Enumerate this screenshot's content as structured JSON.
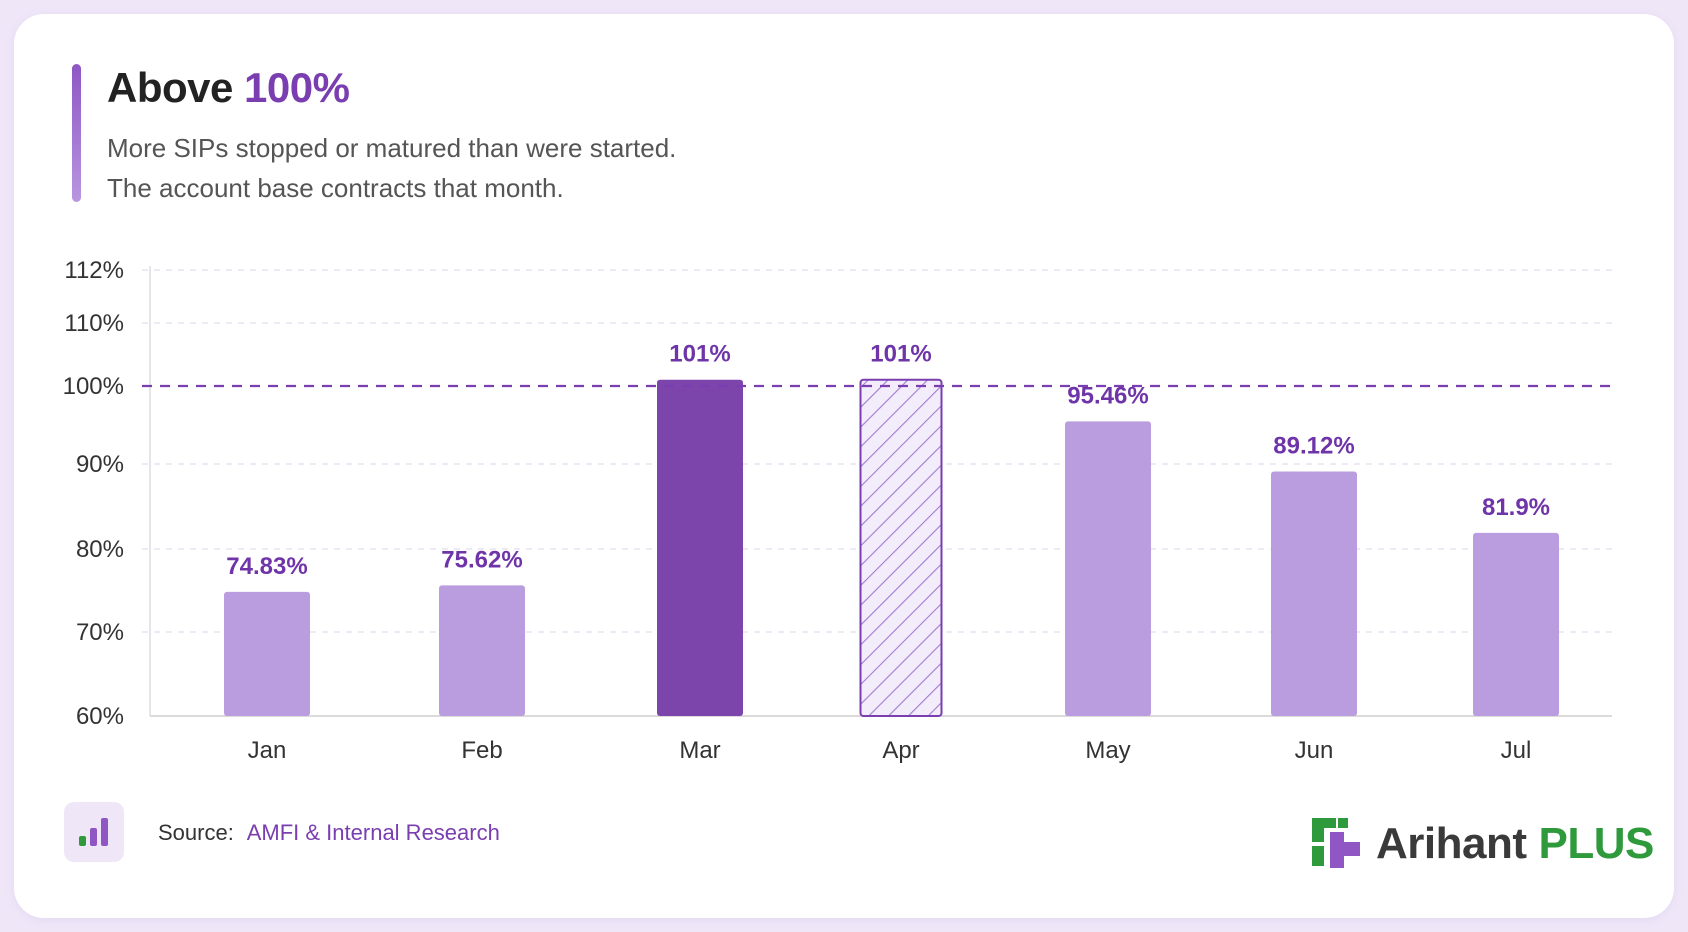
{
  "header": {
    "title_prefix": "Above",
    "title_highlight": "100%",
    "subtitle_line1": "More SIPs stopped or matured than were started.",
    "subtitle_line2": "The account base contracts that month."
  },
  "chart_data": {
    "type": "bar",
    "categories": [
      "Jan",
      "Feb",
      "Mar",
      "Apr",
      "May",
      "Jun",
      "Jul"
    ],
    "values": [
      74.83,
      75.62,
      101,
      101,
      95.46,
      89.12,
      81.9
    ],
    "data_labels": [
      "74.83%",
      "75.62%",
      "101%",
      "101%",
      "95.46%",
      "89.12%",
      "81.9%"
    ],
    "bar_styles": [
      "normal",
      "normal",
      "highlight",
      "hatched",
      "normal",
      "normal",
      "normal"
    ],
    "y_ticks": [
      60,
      70,
      80,
      90,
      100,
      110,
      112
    ],
    "y_tick_labels": [
      "60%",
      "70%",
      "80%",
      "90%",
      "100%",
      "110%",
      "112%"
    ],
    "ylim": [
      60,
      112
    ],
    "reference_line": 100,
    "grid": true,
    "colors": {
      "bar": "#b99ddf",
      "highlight": "#7b45ab",
      "hatch": "#a07cd0",
      "label": "#6e34a8",
      "reference": "#7a3eb0"
    }
  },
  "footer": {
    "source_label": "Source:",
    "source_value": "AMFI & Internal Research",
    "brand_name": "Arihant",
    "brand_plus": "PLUS"
  },
  "icons": {
    "source": "bar-chart-icon",
    "brand": "arihant-logo-icon"
  }
}
